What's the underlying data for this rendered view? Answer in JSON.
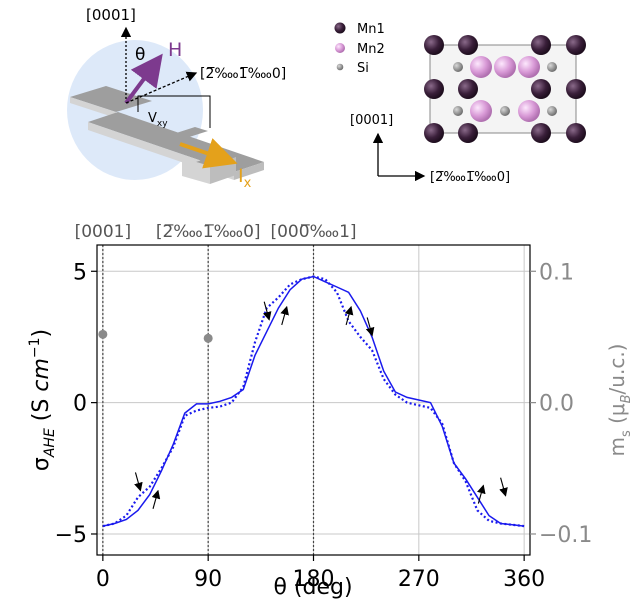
{
  "device_schematic": {
    "axis_up_label": "[0001]",
    "angle_label": "θ",
    "field_label": "H",
    "axis_side_label": "[2̅‱1̅‱0]",
    "voltage_label": "V",
    "voltage_subscript": "xy",
    "current_label": "I",
    "current_subscript": "x"
  },
  "crystal_structure": {
    "legend": [
      {
        "label": "Mn1",
        "color": "#3a1f3a"
      },
      {
        "label": "Mn2",
        "color": "#d899d6"
      },
      {
        "label": "Si",
        "color": "#8f8f8f"
      }
    ],
    "axis_up_label": "[0001]",
    "axis_right_label": "[2̅‱1̅‱0]"
  },
  "chart_data": {
    "type": "line",
    "xlabel": "θ (deg)",
    "ylabel": "σAHE (S cm⁻¹)",
    "ylabel_right": "ms (μB/u.c.)",
    "xlim": [
      -5,
      365
    ],
    "ylim": [
      -5.8,
      6.0
    ],
    "ylim_right": [
      -0.116,
      0.12
    ],
    "x_ticks": [
      0,
      90,
      180,
      270,
      360
    ],
    "y_ticks": [
      -5,
      0,
      5
    ],
    "y_tick_labels": [
      "−5",
      "0",
      "5"
    ],
    "y_right_ticks": [
      -0.1,
      0.0,
      0.1
    ],
    "y_right_tick_labels": [
      "−0.1",
      "0.0",
      "0.1"
    ],
    "grid": true,
    "top_labels": [
      {
        "x": 0,
        "label": "[0001]"
      },
      {
        "x": 90,
        "label": "[2̅‱1̅‱0]"
      },
      {
        "x": 180,
        "label": "[000̅‱1]"
      }
    ],
    "vertical_lines": [
      0,
      90,
      180
    ],
    "colors": {
      "series": "#1a1aee",
      "right_axis": "#8a8a8a",
      "grid": "#c8c8c8"
    },
    "series": [
      {
        "style": "solid",
        "x": [
          0,
          10,
          20,
          30,
          40,
          50,
          60,
          70,
          80,
          90,
          100,
          110,
          120,
          130,
          140,
          150,
          160,
          170,
          180,
          190,
          200,
          210,
          220,
          230,
          240,
          250,
          260,
          270,
          280,
          290,
          300,
          310,
          320,
          330,
          340,
          350,
          360
        ],
        "y": [
          -4.7,
          -4.6,
          -4.45,
          -4.1,
          -3.5,
          -2.6,
          -1.6,
          -0.4,
          -0.05,
          -0.05,
          0.05,
          0.2,
          0.5,
          1.8,
          2.7,
          3.6,
          4.3,
          4.7,
          4.8,
          4.6,
          4.4,
          4.2,
          3.5,
          2.5,
          1.2,
          0.4,
          0.2,
          0.1,
          0.0,
          -0.9,
          -2.3,
          -2.9,
          -3.6,
          -4.3,
          -4.6,
          -4.65,
          -4.7
        ]
      },
      {
        "style": "dotted",
        "x": [
          0,
          10,
          20,
          30,
          40,
          50,
          60,
          70,
          80,
          90,
          100,
          110,
          120,
          130,
          140,
          150,
          160,
          170,
          180,
          190,
          200,
          210,
          220,
          230,
          240,
          250,
          260,
          270,
          280,
          290,
          300,
          310,
          320,
          330,
          340,
          350,
          360
        ],
        "y": [
          -4.7,
          -4.6,
          -4.3,
          -3.6,
          -3.2,
          -2.5,
          -1.7,
          -0.5,
          -0.3,
          -0.2,
          -0.15,
          0.0,
          0.6,
          2.3,
          3.6,
          4.0,
          4.5,
          4.7,
          4.8,
          4.7,
          4.2,
          3.1,
          2.5,
          2.0,
          0.9,
          0.3,
          0.0,
          -0.1,
          -0.2,
          -0.8,
          -2.3,
          -3.0,
          -4.1,
          -4.5,
          -4.6,
          -4.65,
          -4.7
        ]
      }
    ],
    "moment_points": [
      {
        "x": 0,
        "y_right": 0.052
      },
      {
        "x": 90,
        "y_right": 0.049
      }
    ],
    "sweep_arrows": [
      {
        "x": 30,
        "y": -3.0,
        "direction": "down"
      },
      {
        "x": 45,
        "y": -3.7,
        "direction": "up"
      },
      {
        "x": 140,
        "y": 3.5,
        "direction": "down"
      },
      {
        "x": 155,
        "y": 3.3,
        "direction": "up"
      },
      {
        "x": 210,
        "y": 3.3,
        "direction": "up"
      },
      {
        "x": 228,
        "y": 2.9,
        "direction": "down"
      },
      {
        "x": 323,
        "y": -3.5,
        "direction": "up"
      },
      {
        "x": 342,
        "y": -3.2,
        "direction": "down"
      }
    ]
  }
}
